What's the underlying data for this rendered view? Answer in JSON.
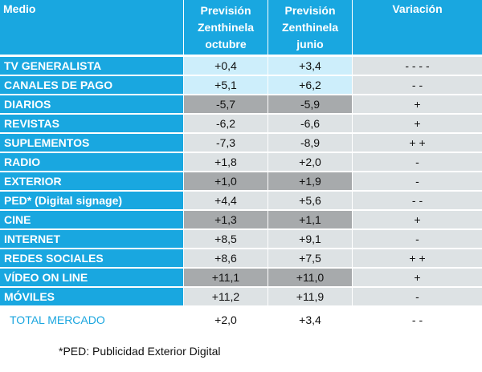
{
  "header": {
    "medio": "Medio",
    "oct_line1": "Previsión",
    "oct_line2": "Zenthinela",
    "oct_line3": "octubre",
    "jun_line1": "Previsión",
    "jun_line2": "Zenthinela",
    "jun_line3": "junio",
    "variacion": "Variación"
  },
  "rows": [
    {
      "medio": "TV GENERALISTA",
      "octubre": "+0,4",
      "junio": "+3,4",
      "variacion": "- - - -"
    },
    {
      "medio": "CANALES DE PAGO",
      "octubre": "+5,1",
      "junio": "+6,2",
      "variacion": "- -"
    },
    {
      "medio": "DIARIOS",
      "octubre": "-5,7",
      "junio": "-5,9",
      "variacion": "+"
    },
    {
      "medio": "REVISTAS",
      "octubre": "-6,2",
      "junio": "-6,6",
      "variacion": "+"
    },
    {
      "medio": "SUPLEMENTOS",
      "octubre": "-7,3",
      "junio": "-8,9",
      "variacion": "+ +"
    },
    {
      "medio": "RADIO",
      "octubre": "+1,8",
      "junio": "+2,0",
      "variacion": "-"
    },
    {
      "medio": "EXTERIOR",
      "octubre": "+1,0",
      "junio": "+1,9",
      "variacion": "-"
    },
    {
      "medio": "PED* (Digital signage)",
      "octubre": "+4,4",
      "junio": "+5,6",
      "variacion": "- -"
    },
    {
      "medio": "CINE",
      "octubre": "+1,3",
      "junio": "+1,1",
      "variacion": "+"
    },
    {
      "medio": "INTERNET",
      "octubre": "+8,5",
      "junio": "+9,1",
      "variacion": "-"
    },
    {
      "medio": "REDES SOCIALES",
      "octubre": "+8,6",
      "junio": "+7,5",
      "variacion": "+ +"
    },
    {
      "medio": "VÍDEO ON LINE",
      "octubre": "+11,1",
      "junio": "+11,0",
      "variacion": "+"
    },
    {
      "medio": "MÓVILES",
      "octubre": "+11,2",
      "junio": "+11,9",
      "variacion": "-"
    },
    {
      "medio": "TOTAL MERCADO",
      "octubre": "+2,0",
      "junio": "+3,4",
      "variacion": "- -"
    }
  ],
  "footnote": "*PED: Publicidad Exterior Digital"
}
